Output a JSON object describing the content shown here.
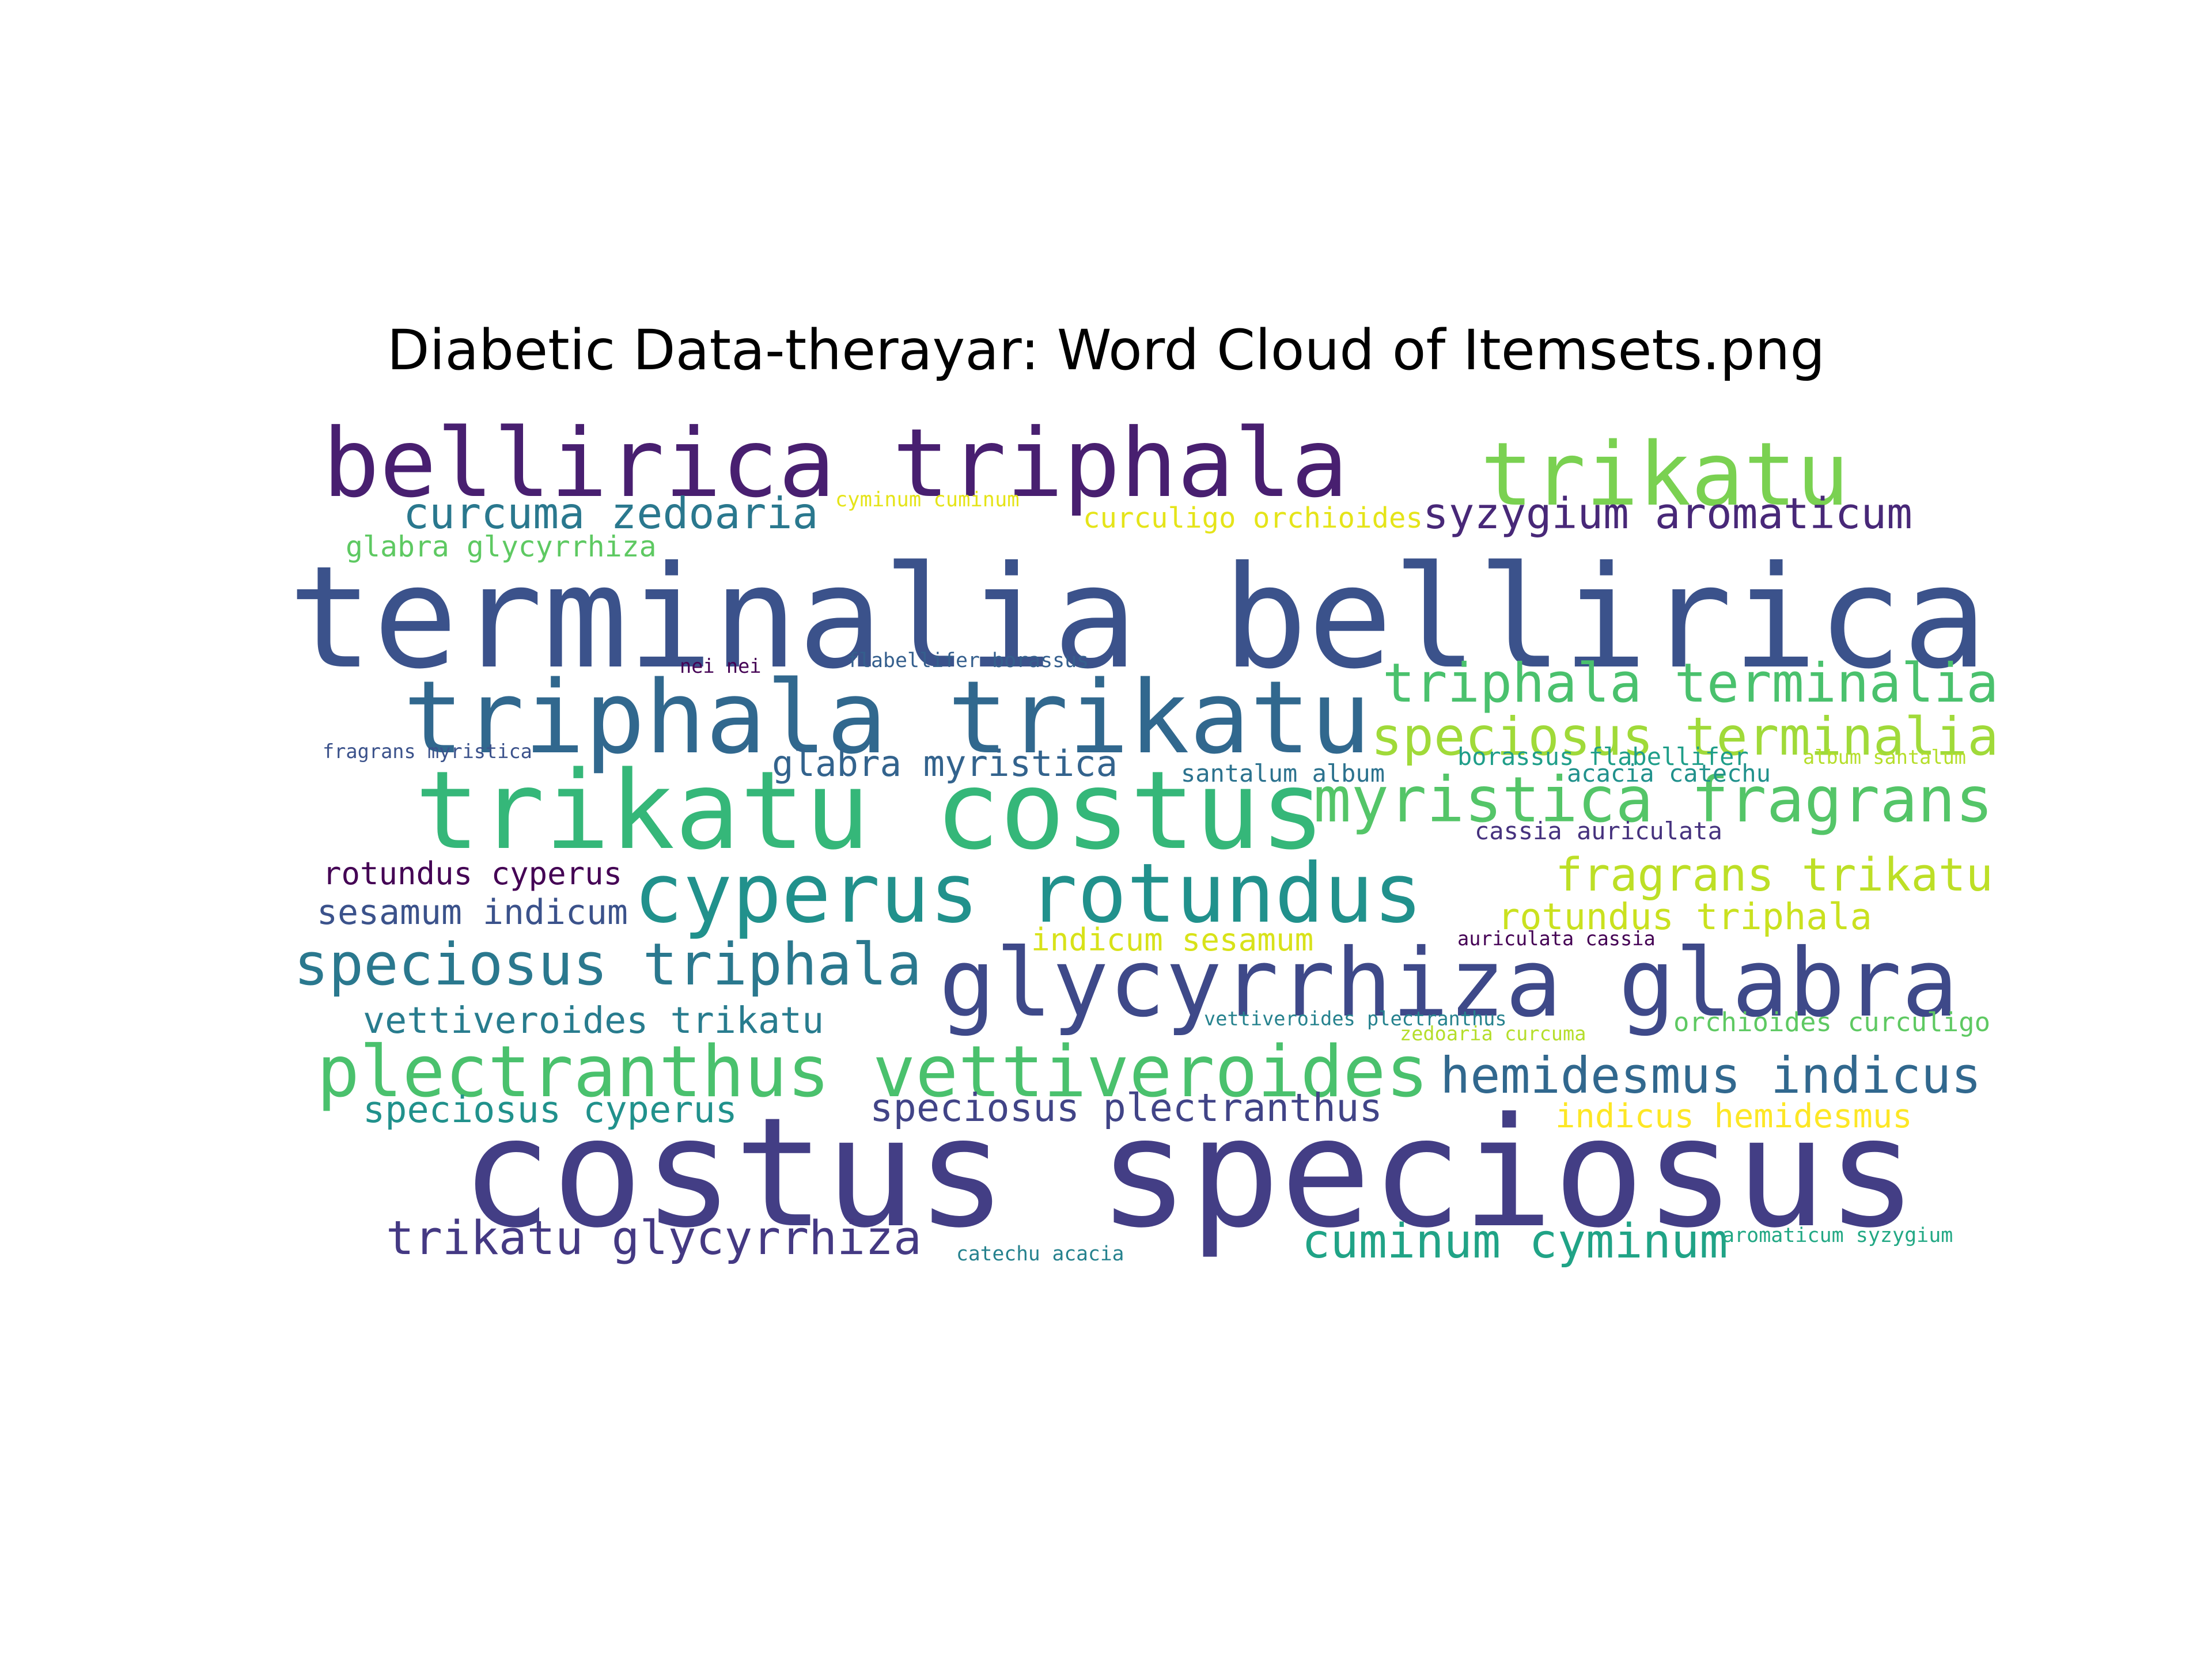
{
  "title": "Diabetic Data-therayar: Word Cloud of Itemsets.png",
  "words": [
    {
      "text": "terminalia bellirica",
      "color": "#3b528b"
    },
    {
      "text": "costus speciosus",
      "color": "#433e85"
    },
    {
      "text": "bellirica triphala",
      "color": "#481f70"
    },
    {
      "text": "trikatu",
      "color": "#7ad151"
    },
    {
      "text": "triphala trikatu",
      "color": "#31688e"
    },
    {
      "text": "trikatu costus",
      "color": "#35b779"
    },
    {
      "text": "glycyrrhiza glabra",
      "color": "#3e4989"
    },
    {
      "text": "cyperus rotundus",
      "color": "#21918c"
    },
    {
      "text": "plectranthus vettiveroides",
      "color": "#4ac16d"
    },
    {
      "text": "myristica fragrans",
      "color": "#54c568"
    },
    {
      "text": "speciosus terminalia",
      "color": "#a0da39"
    },
    {
      "text": "triphala terminalia",
      "color": "#4ac16d"
    },
    {
      "text": "speciosus triphala",
      "color": "#2a788e"
    },
    {
      "text": "hemidesmus indicus",
      "color": "#31688e"
    },
    {
      "text": "syzygium aromaticum",
      "color": "#482878"
    },
    {
      "text": "curcuma zedoaria",
      "color": "#2a788e"
    },
    {
      "text": "trikatu glycyrrhiza",
      "color": "#443983"
    },
    {
      "text": "cuminum cyminum",
      "color": "#20a386"
    },
    {
      "text": "fragrans trikatu",
      "color": "#bddf26"
    },
    {
      "text": "rotundus triphala",
      "color": "#cae11f"
    },
    {
      "text": "speciosus plectranthus",
      "color": "#414487"
    },
    {
      "text": "glabra myristica",
      "color": "#33638d"
    },
    {
      "text": "vettiveroides trikatu",
      "color": "#287c8e"
    },
    {
      "text": "speciosus cyperus",
      "color": "#21918c"
    },
    {
      "text": "sesamum indicum",
      "color": "#3b528b"
    },
    {
      "text": "rotundus cyperus",
      "color": "#440154"
    },
    {
      "text": "indicum sesamum",
      "color": "#d8e219"
    },
    {
      "text": "indicus hemidesmus",
      "color": "#fde725"
    },
    {
      "text": "curculigo orchioides",
      "color": "#e5e419"
    },
    {
      "text": "glabra glycyrrhiza",
      "color": "#5ec962"
    },
    {
      "text": "santalum album",
      "color": "#2c728e"
    },
    {
      "text": "cassia auriculata",
      "color": "#46327e"
    },
    {
      "text": "borassus flabellifer",
      "color": "#1f9e89"
    },
    {
      "text": "acacia catechu",
      "color": "#21918c"
    },
    {
      "text": "orchioides curculigo",
      "color": "#5ec962"
    },
    {
      "text": "cyminum cuminum",
      "color": "#e5e419"
    },
    {
      "text": "nei nei",
      "color": "#440154"
    },
    {
      "text": "flabellifer borassus",
      "color": "#355f8d"
    },
    {
      "text": "fragrans myristica",
      "color": "#3b528b"
    },
    {
      "text": "album santalum",
      "color": "#b5de2b"
    },
    {
      "text": "auriculata cassia",
      "color": "#440154"
    },
    {
      "text": "vettiveroides plectranthus",
      "color": "#26828e"
    },
    {
      "text": "zedoaria curcuma",
      "color": "#b5de2b"
    },
    {
      "text": "catechu acacia",
      "color": "#26828e"
    },
    {
      "text": "aromaticum syzygium",
      "color": "#22a884"
    }
  ]
}
